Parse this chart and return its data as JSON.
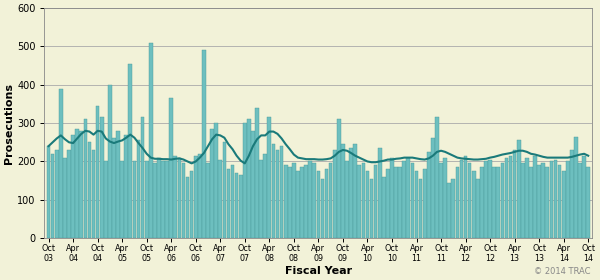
{
  "xlabel": "Fiscal Year",
  "ylabel": "Prosecutions",
  "ylim": [
    0,
    600
  ],
  "yticks": [
    0,
    100,
    200,
    300,
    400,
    500,
    600
  ],
  "background_color": "#f2f2d8",
  "plot_bg_color": "#f2f2d8",
  "bar_color": "#6dbfbf",
  "bar_edge_color": "#4a9999",
  "line_color": "#1a7a7a",
  "copyright": "© 2014 TRAC",
  "tick_labels": [
    "Oct\n03",
    "Apr\n04",
    "Oct\n04",
    "Apr\n05",
    "Oct\n05",
    "Apr\n06",
    "Oct\n06",
    "Apr\n07",
    "Oct\n07",
    "Apr\n08",
    "Oct\n08",
    "Apr\n09",
    "Oct\n09",
    "Apr\n10",
    "Oct\n10",
    "Apr\n11",
    "Oct\n11",
    "Apr\n12",
    "Oct\n12",
    "Apr\n13",
    "Oct\n13",
    "Apr\n14",
    "Oct\n14"
  ],
  "tick_months": [
    0,
    6,
    12,
    18,
    24,
    30,
    36,
    42,
    48,
    54,
    60,
    66,
    72,
    78,
    84,
    90,
    96,
    102,
    108,
    114,
    120,
    126,
    132
  ],
  "bar_values": [
    240,
    220,
    230,
    390,
    210,
    230,
    270,
    285,
    280,
    310,
    250,
    230,
    345,
    315,
    200,
    400,
    260,
    280,
    200,
    270,
    455,
    200,
    255,
    315,
    200,
    510,
    195,
    210,
    200,
    200,
    365,
    215,
    210,
    195,
    160,
    175,
    215,
    220,
    490,
    195,
    285,
    300,
    205,
    250,
    180,
    190,
    170,
    165,
    300,
    310,
    280,
    340,
    205,
    220,
    315,
    245,
    230,
    240,
    190,
    185,
    195,
    175,
    185,
    190,
    200,
    195,
    175,
    155,
    180,
    195,
    230,
    310,
    245,
    200,
    235,
    245,
    190,
    195,
    175,
    155,
    190,
    235,
    160,
    180,
    210,
    185,
    185,
    200,
    210,
    195,
    175,
    155,
    180,
    225,
    260,
    315,
    195,
    210,
    145,
    155,
    185,
    205,
    215,
    195,
    175,
    155,
    185,
    200,
    205,
    185,
    185,
    195,
    210,
    215,
    230,
    255,
    195,
    210,
    185,
    215,
    190,
    195,
    185,
    200,
    205,
    190,
    175,
    200,
    230,
    265,
    195,
    215,
    185
  ],
  "line_values": [
    240,
    250,
    260,
    268,
    258,
    250,
    248,
    260,
    272,
    280,
    278,
    270,
    280,
    278,
    260,
    252,
    248,
    252,
    255,
    262,
    270,
    262,
    248,
    235,
    220,
    210,
    207,
    207,
    206,
    206,
    205,
    207,
    208,
    205,
    200,
    195,
    200,
    210,
    222,
    240,
    258,
    270,
    268,
    262,
    245,
    232,
    215,
    202,
    195,
    215,
    240,
    258,
    268,
    268,
    278,
    278,
    272,
    260,
    245,
    232,
    218,
    210,
    208,
    206,
    206,
    206,
    205,
    205,
    206,
    208,
    215,
    225,
    230,
    228,
    222,
    215,
    210,
    205,
    200,
    198,
    198,
    200,
    202,
    205,
    205,
    207,
    208,
    210,
    210,
    210,
    208,
    206,
    205,
    208,
    215,
    225,
    228,
    225,
    220,
    215,
    210,
    208,
    207,
    206,
    205,
    205,
    206,
    207,
    210,
    212,
    215,
    218,
    220,
    222,
    225,
    228,
    228,
    225,
    220,
    218,
    215,
    212,
    210,
    210,
    210,
    210,
    210,
    210,
    212,
    215,
    218,
    220,
    215
  ]
}
